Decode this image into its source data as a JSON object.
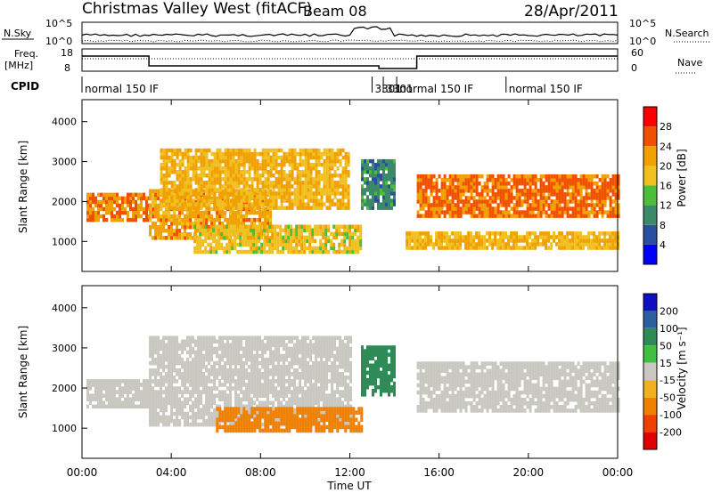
{
  "header": {
    "title": "Christmas Valley West (fitACF)",
    "beam": "Beam 08",
    "date": "28/Apr/2011"
  },
  "top_panels": {
    "nsky_label": "N.Sky",
    "nsky_ticks": [
      "10^5",
      "10^0"
    ],
    "nsearch_label": "N.Search",
    "freq_label_1": "Freq.",
    "freq_label_2": "[MHz]",
    "freq_ticks": [
      "18",
      "8"
    ],
    "nave_ticks": [
      "60",
      "0"
    ],
    "nave_label": "Nave",
    "cpid_label": "CPID",
    "cpid_segments": [
      {
        "label": "normal 150 IF",
        "start_hour": 0
      },
      {
        "label": "3301",
        "start_hour": 13.0
      },
      {
        "label": "3301",
        "start_hour": 13.5
      },
      {
        "label": "normal 150 IF",
        "start_hour": 14.1
      },
      {
        "label": "normal 150 IF",
        "start_hour": 19.0
      }
    ]
  },
  "x_axis": {
    "label": "Time UT",
    "ticks": [
      "00:00",
      "04:00",
      "08:00",
      "12:00",
      "16:00",
      "20:00",
      "00:00"
    ],
    "range_hours": [
      0,
      24
    ]
  },
  "colors": {
    "power": [
      "#0000ff",
      "#2a4fa0",
      "#3a8a6a",
      "#4cbf3a",
      "#f0c020",
      "#f0a000",
      "#f05000",
      "#ff0000"
    ],
    "velocity": [
      "#1010c0",
      "#2a5fa0",
      "#2e8b57",
      "#40c040",
      "#c8c8c0",
      "#f0b020",
      "#f08000",
      "#f04000",
      "#e00000"
    ]
  },
  "chart_data": [
    {
      "type": "heatmap",
      "ylabel": "Slant Range [km]",
      "yticks": [
        "1000",
        "2000",
        "3000",
        "4000"
      ],
      "ylim": [
        250,
        4550
      ],
      "colorbar_label": "Power [dB]",
      "colorbar_ticks": [
        "4",
        "8",
        "12",
        "16",
        "20",
        "24",
        "28"
      ],
      "bands": [
        {
          "t": [
            0.2,
            3.0
          ],
          "r": [
            1500,
            2200
          ],
          "value": 26
        },
        {
          "t": [
            3.0,
            8.5
          ],
          "r": [
            1050,
            2300
          ],
          "value": 24
        },
        {
          "t": [
            3.5,
            12.0
          ],
          "r": [
            1800,
            3300
          ],
          "value": 22
        },
        {
          "t": [
            5.0,
            12.5
          ],
          "r": [
            700,
            1400
          ],
          "value": 20
        },
        {
          "t": [
            12.5,
            14.0
          ],
          "r": [
            1800,
            3000
          ],
          "value": 12
        },
        {
          "t": [
            15.0,
            24.0
          ],
          "r": [
            1600,
            2600
          ],
          "value": 27
        },
        {
          "t": [
            14.5,
            24.0
          ],
          "r": [
            800,
            1200
          ],
          "value": 22
        }
      ]
    },
    {
      "type": "heatmap",
      "ylabel": "Slant Range [km]",
      "yticks": [
        "1000",
        "2000",
        "3000",
        "4000"
      ],
      "ylim": [
        250,
        4550
      ],
      "colorbar_label": "Velocity [m s⁻¹]",
      "colorbar_ticks": [
        "200",
        "100",
        "50",
        "15",
        "-15",
        "-50",
        "-100",
        "-200"
      ],
      "bands": [
        {
          "t": [
            0.2,
            3.0
          ],
          "r": [
            1500,
            2200
          ],
          "value": 0
        },
        {
          "t": [
            3.0,
            12.0
          ],
          "r": [
            1050,
            3300
          ],
          "value": 0
        },
        {
          "t": [
            6.0,
            12.5
          ],
          "r": [
            900,
            1500
          ],
          "value": -40
        },
        {
          "t": [
            12.5,
            14.0
          ],
          "r": [
            1800,
            3000
          ],
          "value": 40
        },
        {
          "t": [
            15.0,
            24.0
          ],
          "r": [
            1400,
            2600
          ],
          "value": 0
        }
      ]
    }
  ]
}
